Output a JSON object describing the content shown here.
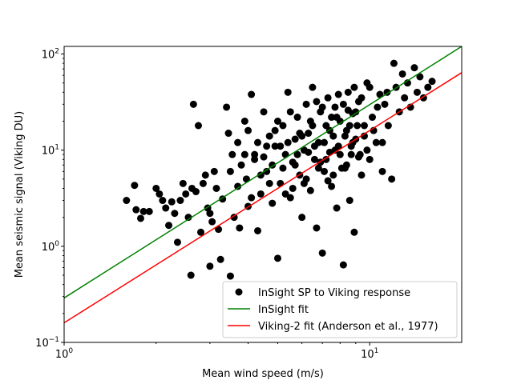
{
  "chart_data": {
    "type": "scatter",
    "xlabel": "Mean wind speed (m/s)",
    "ylabel": "Mean seismic signal (Viking DU)",
    "xscale": "log",
    "yscale": "log",
    "xlim": [
      1,
      20
    ],
    "ylim": [
      0.1,
      120
    ],
    "x_ticks": [
      {
        "value": 1,
        "base": "10",
        "exp": "0"
      },
      {
        "value": 10,
        "base": "10",
        "exp": "1"
      }
    ],
    "y_ticks": [
      {
        "value": 0.1,
        "base": "10",
        "exp": "−1"
      },
      {
        "value": 1,
        "base": "10",
        "exp": "0"
      },
      {
        "value": 10,
        "base": "10",
        "exp": "1"
      },
      {
        "value": 100,
        "base": "10",
        "exp": "2"
      }
    ],
    "grid": false,
    "legend_position": "lower-right",
    "series": [
      {
        "name": "InSight SP to Viking response",
        "kind": "scatter",
        "color": "#000000",
        "points": [
          [
            1.6,
            3.0
          ],
          [
            1.7,
            4.3
          ],
          [
            1.72,
            2.4
          ],
          [
            1.78,
            1.95
          ],
          [
            1.82,
            2.3
          ],
          [
            1.9,
            2.3
          ],
          [
            2.0,
            4.0
          ],
          [
            2.05,
            3.5
          ],
          [
            2.1,
            3.0
          ],
          [
            2.15,
            2.5
          ],
          [
            2.2,
            1.65
          ],
          [
            2.25,
            2.9
          ],
          [
            2.3,
            2.2
          ],
          [
            2.35,
            1.1
          ],
          [
            2.4,
            3.0
          ],
          [
            2.45,
            4.5
          ],
          [
            2.5,
            3.5
          ],
          [
            2.55,
            2.0
          ],
          [
            2.6,
            0.5
          ],
          [
            2.62,
            4.0
          ],
          [
            2.65,
            30.0
          ],
          [
            2.7,
            3.7
          ],
          [
            2.75,
            18.0
          ],
          [
            2.8,
            1.4
          ],
          [
            2.85,
            4.5
          ],
          [
            2.9,
            5.5
          ],
          [
            2.95,
            2.5
          ],
          [
            3.0,
            0.62
          ],
          [
            3.0,
            2.2
          ],
          [
            3.05,
            1.8
          ],
          [
            3.1,
            6.0
          ],
          [
            3.15,
            4.0
          ],
          [
            3.2,
            1.5
          ],
          [
            3.25,
            0.73
          ],
          [
            3.3,
            3.1
          ],
          [
            3.4,
            28.0
          ],
          [
            3.45,
            15.0
          ],
          [
            3.5,
            0.49
          ],
          [
            3.55,
            9.0
          ],
          [
            3.6,
            2.0
          ],
          [
            3.7,
            12.0
          ],
          [
            3.75,
            1.55
          ],
          [
            3.8,
            7.0
          ],
          [
            3.9,
            20.0
          ],
          [
            3.95,
            5.0
          ],
          [
            4.0,
            2.6
          ],
          [
            4.1,
            38.0
          ],
          [
            4.2,
            8.0
          ],
          [
            4.3,
            1.45
          ],
          [
            4.4,
            3.5
          ],
          [
            4.5,
            25.0
          ],
          [
            4.6,
            6.0
          ],
          [
            4.7,
            14.0
          ],
          [
            4.8,
            2.8
          ],
          [
            4.9,
            11.0
          ],
          [
            5.0,
            0.75
          ],
          [
            5.1,
            4.5
          ],
          [
            5.2,
            18.0
          ],
          [
            5.3,
            9.0
          ],
          [
            5.4,
            40.0
          ],
          [
            5.5,
            3.2
          ],
          [
            5.6,
            7.5
          ],
          [
            5.7,
            13.0
          ],
          [
            5.8,
            22.0
          ],
          [
            5.9,
            5.5
          ],
          [
            6.0,
            2.0
          ],
          [
            6.1,
            10.0
          ],
          [
            6.2,
            30.0
          ],
          [
            6.3,
            15.0
          ],
          [
            6.4,
            3.8
          ],
          [
            6.5,
            45.0
          ],
          [
            6.6,
            8.0
          ],
          [
            6.7,
            1.55
          ],
          [
            6.8,
            12.0
          ],
          [
            6.9,
            25.0
          ],
          [
            7.0,
            0.85
          ],
          [
            7.1,
            6.0
          ],
          [
            7.2,
            18.0
          ],
          [
            7.3,
            35.0
          ],
          [
            7.4,
            9.5
          ],
          [
            7.5,
            4.2
          ],
          [
            7.6,
            14.0
          ],
          [
            7.7,
            28.0
          ],
          [
            7.8,
            2.5
          ],
          [
            7.9,
            11.0
          ],
          [
            8.0,
            20.0
          ],
          [
            8.2,
            0.64
          ],
          [
            8.3,
            6.5
          ],
          [
            8.4,
            16.0
          ],
          [
            8.5,
            40.0
          ],
          [
            8.6,
            3.0
          ],
          [
            8.7,
            9.0
          ],
          [
            8.8,
            24.0
          ],
          [
            8.9,
            1.4
          ],
          [
            9.0,
            13.0
          ],
          [
            9.2,
            32.0
          ],
          [
            9.4,
            5.5
          ],
          [
            9.6,
            18.0
          ],
          [
            9.8,
            50.0
          ],
          [
            10.0,
            8.0
          ],
          [
            10.2,
            22.0
          ],
          [
            10.5,
            12.0
          ],
          [
            10.8,
            38.0
          ],
          [
            11.0,
            6.0
          ],
          [
            11.2,
            30.0
          ],
          [
            11.5,
            18.0
          ],
          [
            11.8,
            5.0
          ],
          [
            12.0,
            80.0
          ],
          [
            12.2,
            45.0
          ],
          [
            12.5,
            25.0
          ],
          [
            12.8,
            62.0
          ],
          [
            13.0,
            35.0
          ],
          [
            13.3,
            50.0
          ],
          [
            13.6,
            28.0
          ],
          [
            14.0,
            72.0
          ],
          [
            14.3,
            40.0
          ],
          [
            14.6,
            58.0
          ],
          [
            15.0,
            35.0
          ],
          [
            15.5,
            45.0
          ],
          [
            16.0,
            52.0
          ],
          [
            4.0,
            16.0
          ],
          [
            4.2,
            9.0
          ],
          [
            4.4,
            5.5
          ],
          [
            4.6,
            11.0
          ],
          [
            4.8,
            7.0
          ],
          [
            5.0,
            20.0
          ],
          [
            5.2,
            6.5
          ],
          [
            5.4,
            12.0
          ],
          [
            5.6,
            4.0
          ],
          [
            5.8,
            9.0
          ],
          [
            6.0,
            14.0
          ],
          [
            6.2,
            5.0
          ],
          [
            6.4,
            20.0
          ],
          [
            6.6,
            11.0
          ],
          [
            6.8,
            6.5
          ],
          [
            7.0,
            28.0
          ],
          [
            7.2,
            8.0
          ],
          [
            7.4,
            16.0
          ],
          [
            7.6,
            5.5
          ],
          [
            7.8,
            22.0
          ],
          [
            8.0,
            9.0
          ],
          [
            8.2,
            30.0
          ],
          [
            8.4,
            7.0
          ],
          [
            8.6,
            18.0
          ],
          [
            8.8,
            12.0
          ],
          [
            9.0,
            25.0
          ],
          [
            9.2,
            8.5
          ],
          [
            9.4,
            35.0
          ],
          [
            9.6,
            14.0
          ],
          [
            9.8,
            10.0
          ],
          [
            10.0,
            45.0
          ],
          [
            10.3,
            16.0
          ],
          [
            10.6,
            28.0
          ],
          [
            11.0,
            12.0
          ],
          [
            11.4,
            40.0
          ],
          [
            3.5,
            6.0
          ],
          [
            3.7,
            4.2
          ],
          [
            3.9,
            9.0
          ],
          [
            4.1,
            3.2
          ],
          [
            4.3,
            12.0
          ],
          [
            4.5,
            8.5
          ],
          [
            4.7,
            4.5
          ],
          [
            4.9,
            16.0
          ],
          [
            5.1,
            11.0
          ],
          [
            5.3,
            3.5
          ],
          [
            5.5,
            25.0
          ],
          [
            5.7,
            7.0
          ],
          [
            5.9,
            15.0
          ],
          [
            6.1,
            4.5
          ],
          [
            6.3,
            9.5
          ],
          [
            6.5,
            18.0
          ],
          [
            6.7,
            32.0
          ],
          [
            6.9,
            7.5
          ],
          [
            7.1,
            12.0
          ],
          [
            7.3,
            4.8
          ],
          [
            7.5,
            22.0
          ],
          [
            7.7,
            10.0
          ],
          [
            7.9,
            38.0
          ],
          [
            8.1,
            6.5
          ],
          [
            8.3,
            14.0
          ],
          [
            8.5,
            26.0
          ],
          [
            8.7,
            11.0
          ],
          [
            8.9,
            45.0
          ],
          [
            9.1,
            18.0
          ],
          [
            9.3,
            9.0
          ]
        ]
      },
      {
        "name": "InSight fit",
        "kind": "line",
        "color": "#008000",
        "points": [
          [
            1,
            0.29
          ],
          [
            20,
            120
          ]
        ]
      },
      {
        "name": "Viking-2 fit (Anderson et al., 1977)",
        "kind": "line",
        "color": "#ff0000",
        "points": [
          [
            1,
            0.16
          ],
          [
            20,
            64
          ]
        ]
      }
    ]
  }
}
